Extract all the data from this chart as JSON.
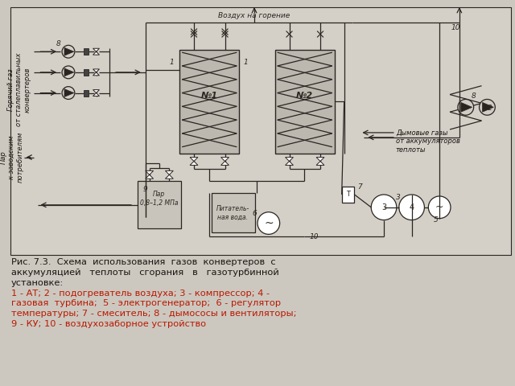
{
  "bg_color": "#ccc8c0",
  "diagram_bg": "#d8d4cc",
  "line_color": "#2a2520",
  "text_color_black": "#1a1510",
  "text_color_red": "#bb1800",
  "caption_line1": "Рис. 7.3.  Схема  использования  газов  конвертеров  с",
  "caption_line2": "аккумуляцией   теплоты   сгорания   в   газотурбинной",
  "caption_line3": "установке:",
  "caption_line4": "1 - АТ; 2 - подогреватель воздуха; 3 - компрессор; 4 -",
  "caption_line5": "газовая  турбина;  5 - электрогенератор;  6 - регулятор",
  "caption_line6": "температуры; 7 - смеситель; 8 - дымососы и вентиляторы;",
  "caption_line7": "9 - КУ; 10 - воздухозаборное устройство",
  "label_vozduh": "Воздух на горение",
  "label_dymovye": "Дымовые газы\nот аккумуляторов\nтеплоты",
  "label_goryachiy": "Горячий газ\nот сталеплавильных\nконвертеров",
  "label_par1": "Пар\n0,8–1,2 МПа",
  "label_par2": "Пар\nк заводским\nпотребителям",
  "label_pitatel": "Питатель-\nная вода.",
  "label_N1": "№1",
  "label_N2": "№2"
}
